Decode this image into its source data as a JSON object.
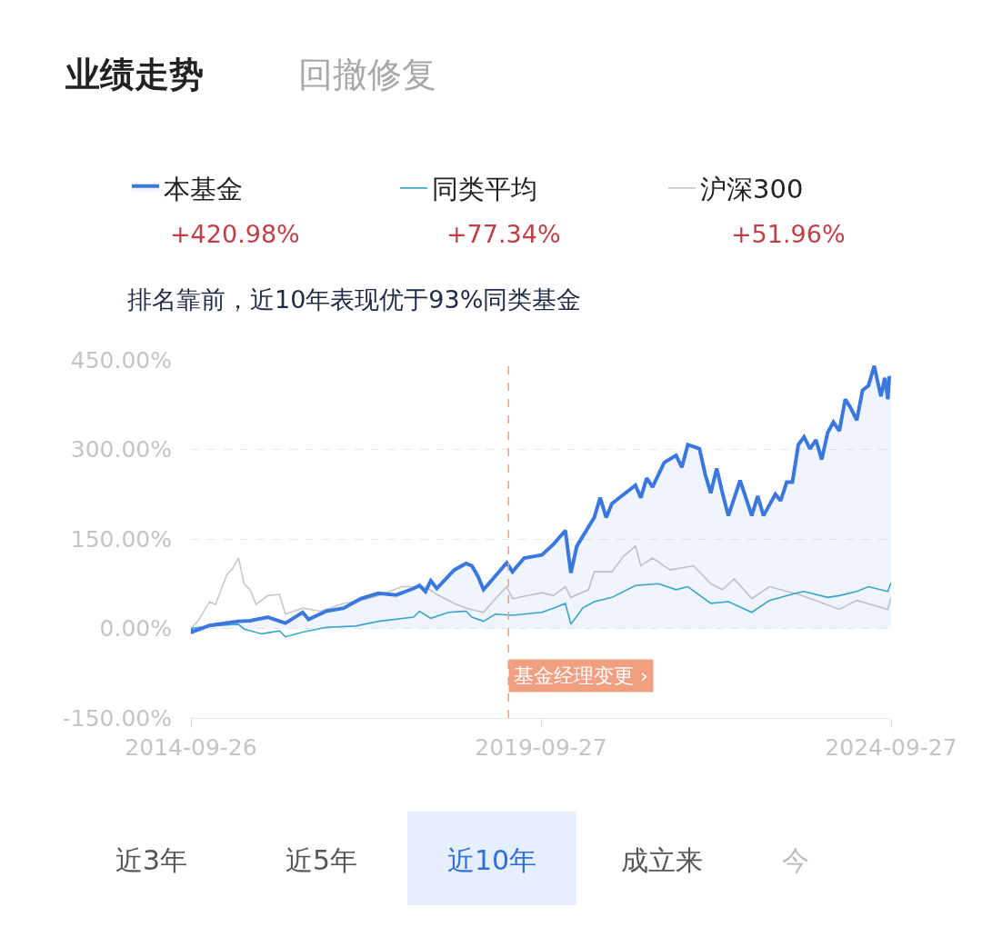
{
  "chart_data": {
    "type": "line",
    "annotations": [
      "业绩走势",
      "回撤修复",
      "排名靠前，近10年表现优于93%同类基金",
      "+420.98%",
      "+77.34%",
      "+51.96%",
      "近3年",
      "近5年",
      "近10年",
      "成立来",
      "今"
    ],
    "xlim": [
      "2014-09-26",
      "2024-09-27"
    ],
    "xticks": [
      {
        "value": "2014-09-26",
        "label": "2014-09-26"
      },
      {
        "value": "2019-09-27",
        "label": "2019-09-27"
      },
      {
        "value": "2024-09-27",
        "label": "2024-09-27"
      }
    ],
    "ylim": [
      -150,
      450
    ],
    "yticks": [
      {
        "value": -150,
        "label": "-150.00%"
      },
      {
        "value": 0,
        "label": "0.00%"
      },
      {
        "value": 150,
        "label": "150.00%"
      },
      {
        "value": 300,
        "label": "300.00%"
      },
      {
        "value": 450,
        "label": "450.00%"
      }
    ],
    "grid": "y",
    "legend": "top",
    "ref_lines": [
      {
        "axis": "x",
        "value": "2019-04-10",
        "label": "基金经理变更 ›",
        "color": "#f0a080",
        "line_style": "dashed"
      }
    ],
    "series": [
      {
        "name": "本基金",
        "type": "area",
        "color": "#3a78e0",
        "x": [
          "2014-09-26",
          "2014-10",
          "2015-01",
          "2015-06",
          "2015-08",
          "2015-11",
          "2016-02",
          "2016-05",
          "2016-06",
          "2016-09",
          "2016-12",
          "2017-03",
          "2017-06",
          "2017-09",
          "2017-12",
          "2018-01",
          "2018-02",
          "2018-03",
          "2018-04",
          "2018-07",
          "2018-09",
          "2018-10",
          "2018-11",
          "2018-12",
          "2019-02",
          "2019-04",
          "2019-05",
          "2019-07",
          "2019-10",
          "2019-12",
          "2020-02",
          "2020-03",
          "2020-04",
          "2020-07",
          "2020-08",
          "2020-09",
          "2020-10",
          "2020-11",
          "2021-02",
          "2021-03",
          "2021-04",
          "2021-05",
          "2021-07",
          "2021-09",
          "2021-10",
          "2021-11",
          "2022-01",
          "2022-02",
          "2022-03",
          "2022-04",
          "2022-05",
          "2022-06",
          "2022-08",
          "2022-10",
          "2022-11",
          "2022-12",
          "2023-02",
          "2023-03",
          "2023-04",
          "2023-05",
          "2023-06",
          "2023-07",
          "2023-08",
          "2023-09",
          "2023-10",
          "2023-11",
          "2023-12",
          "2024-01",
          "2024-02",
          "2024-03",
          "2024-04",
          "2024-05",
          "2024-06",
          "2024-07",
          "2024-08-05",
          "2024-08-25",
          "2024-09-10",
          "2024-09-17",
          "2024-09-27"
        ],
        "values": [
          0,
          -6,
          5,
          12,
          13,
          19,
          9,
          27,
          15,
          29,
          34,
          50,
          59,
          56,
          67,
          72,
          62,
          80,
          67,
          98,
          109,
          105,
          88,
          65,
          88,
          110,
          95,
          118,
          123,
          141,
          164,
          93,
          138,
          186,
          219,
          186,
          209,
          217,
          240,
          219,
          252,
          237,
          278,
          290,
          270,
          308,
          301,
          257,
          227,
          268,
          227,
          189,
          248,
          189,
          222,
          189,
          225,
          214,
          245,
          245,
          308,
          321,
          301,
          316,
          283,
          328,
          346,
          331,
          384,
          369,
          349,
          399,
          407,
          440,
          389,
          420,
          384,
          420,
          421
        ]
      },
      {
        "name": "同类平均",
        "color": "#3aa8cc",
        "x": [
          "2014-09-26",
          "2015-01",
          "2015-06",
          "2015-07",
          "2015-10",
          "2016-01",
          "2016-02",
          "2016-05",
          "2016-09",
          "2017-02",
          "2017-06",
          "2017-12",
          "2018-01",
          "2018-03",
          "2018-06",
          "2018-09",
          "2018-10",
          "2018-12",
          "2019-02",
          "2019-05",
          "2019-10",
          "2019-12",
          "2020-02",
          "2020-03",
          "2020-05",
          "2020-07",
          "2020-10",
          "2021-02",
          "2021-06",
          "2021-09",
          "2021-11",
          "2022-03",
          "2022-06",
          "2022-10",
          "2023-01",
          "2023-06",
          "2023-07",
          "2023-11",
          "2024-01",
          "2024-04",
          "2024-06",
          "2024-09-10",
          "2024-09-27"
        ],
        "values": [
          0,
          4,
          7,
          -1,
          -9,
          -4,
          -14,
          -6,
          2,
          4,
          12,
          19,
          29,
          17,
          27,
          29,
          19,
          12,
          24,
          22,
          27,
          34,
          42,
          7,
          34,
          45,
          52,
          72,
          75,
          65,
          70,
          42,
          45,
          27,
          47,
          60,
          62,
          52,
          55,
          62,
          70,
          62,
          77
        ]
      },
      {
        "name": "沪深300",
        "color": "#c8c8c8",
        "x": [
          "2014-09-26",
          "2014-11",
          "2015-01",
          "2015-02",
          "2015-04",
          "2015-05",
          "2015-06",
          "2015-07",
          "2015-08",
          "2015-09",
          "2015-11",
          "2016-01",
          "2016-02",
          "2016-05",
          "2016-08",
          "2016-12",
          "2017-03",
          "2017-06",
          "2017-10",
          "2018-02",
          "2018-04",
          "2018-07",
          "2018-09",
          "2018-12",
          "2019-02",
          "2019-04",
          "2019-05",
          "2019-10",
          "2019-12",
          "2020-02",
          "2020-03",
          "2020-06",
          "2020-07",
          "2020-10",
          "2020-12",
          "2021-02",
          "2021-03",
          "2021-05",
          "2021-08",
          "2021-12",
          "2022-03",
          "2022-05",
          "2022-07",
          "2022-10",
          "2023-01",
          "2023-06",
          "2023-09",
          "2024-01",
          "2024-04",
          "2024-09-10",
          "2024-09-27"
        ],
        "values": [
          0,
          12,
          45,
          40,
          90,
          100,
          118,
          75,
          65,
          40,
          55,
          57,
          24,
          34,
          29,
          42,
          47,
          55,
          70,
          70,
          57,
          42,
          34,
          27,
          50,
          70,
          50,
          60,
          55,
          70,
          52,
          65,
          95,
          95,
          121,
          138,
          105,
          118,
          98,
          105,
          75,
          65,
          83,
          50,
          70,
          57,
          47,
          32,
          47,
          32,
          52
        ]
      }
    ]
  }
}
